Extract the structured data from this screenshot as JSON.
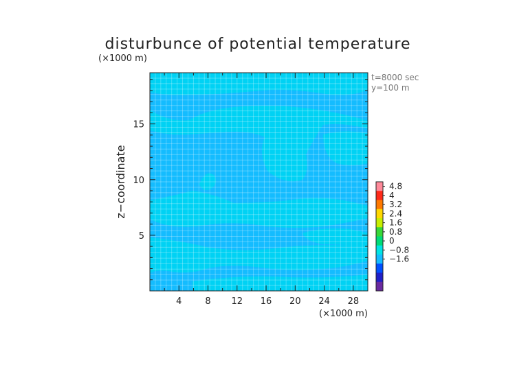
{
  "chart_data": {
    "type": "heatmap",
    "title": "disturbunce of potential temperature",
    "ylabel": "z−coordinate",
    "x_unit": "(×1000 m)",
    "y_unit": "(×1000 m)",
    "annotations": [
      "t=8000 sec",
      "y=100 m"
    ],
    "xlim": [
      0,
      30
    ],
    "ylim": [
      0,
      19.6
    ],
    "x_ticks": [
      4,
      8,
      12,
      16,
      20,
      24,
      28
    ],
    "y_ticks": [
      5,
      10,
      15
    ],
    "x_tick_labels": [
      "4",
      "8",
      "12",
      "16",
      "20",
      "24",
      "28"
    ],
    "y_tick_labels": [
      "5",
      "10",
      "15"
    ],
    "grid": true,
    "colorbar": {
      "labels": [
        "4.8",
        "4",
        "3.2",
        "2.4",
        "1.6",
        "0.8",
        "0",
        "−0.8",
        "−1.6"
      ],
      "colors": [
        "#ff8a9a",
        "#ff2a1a",
        "#ff7a00",
        "#ffd800",
        "#c8ee00",
        "#38d838",
        "#00dc78",
        "#00e4e4",
        "#14bcff",
        "#0050ff",
        "#2020c8",
        "#6a2aa0"
      ]
    },
    "field_levels": [
      "#00d2f4",
      "#14bcff"
    ],
    "field_value_range": [
      -0.4,
      0.4
    ]
  }
}
